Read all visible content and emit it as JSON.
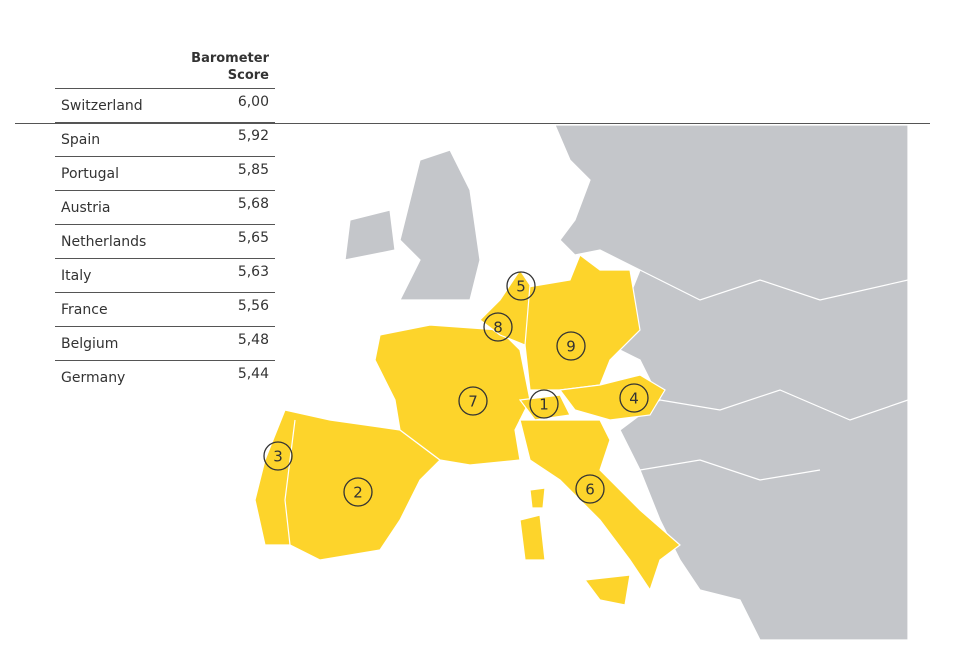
{
  "table": {
    "header": "Barometer Score",
    "rows": [
      [
        "Switzerland",
        "6,00"
      ],
      [
        "Spain",
        "5,92"
      ],
      [
        "Portugal",
        "5,85"
      ],
      [
        "Austria",
        "5,68"
      ],
      [
        "Netherlands",
        "5,65"
      ],
      [
        "Italy",
        "5,63"
      ],
      [
        "France",
        "5,56"
      ],
      [
        "Belgium",
        "5,48"
      ],
      [
        "Germany",
        "5,44"
      ]
    ]
  },
  "map": {
    "markers": [
      "1",
      "2",
      "3",
      "4",
      "5",
      "6",
      "7",
      "8",
      "9"
    ]
  }
}
